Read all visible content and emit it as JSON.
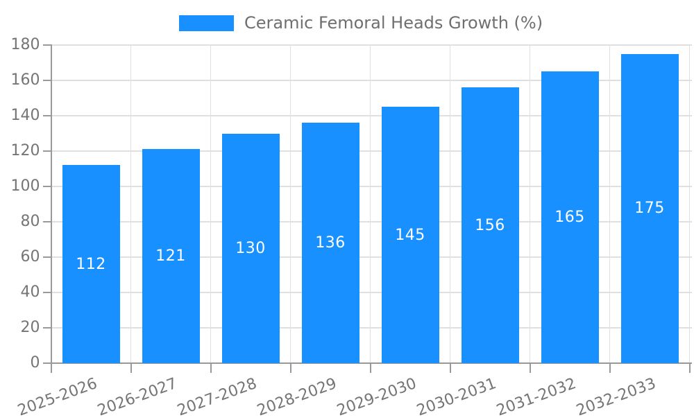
{
  "legend": {
    "label": "Ceramic Femoral Heads Growth (%)"
  },
  "chart_data": {
    "type": "bar",
    "title": "Ceramic Femoral Heads Growth (%)",
    "series_name": "Ceramic Femoral Heads Growth (%)",
    "categories": [
      "2025-2026",
      "2026-2027",
      "2027-2028",
      "2028-2029",
      "2029-2030",
      "2030-2031",
      "2031-2032",
      "2032-2033"
    ],
    "values": [
      112,
      121,
      130,
      136,
      145,
      156,
      165,
      175
    ],
    "value_labels": [
      "112",
      "121",
      "130",
      "136",
      "145",
      "156",
      "165",
      "175"
    ],
    "xlabel": "",
    "ylabel": "",
    "ylim": [
      0,
      180
    ],
    "yticks": [
      0,
      20,
      40,
      60,
      80,
      100,
      120,
      140,
      160,
      180
    ],
    "grid": "both",
    "legend_position": "top",
    "x_label_rotation_deg": -20,
    "colors": {
      "bar": "#1890ff",
      "grid": "#e0e0e0",
      "axis": "#999999",
      "tick_label": "#757575",
      "legend_text": "#6f6f6f",
      "value_label": "#ffffff",
      "background": "#ffffff"
    }
  }
}
